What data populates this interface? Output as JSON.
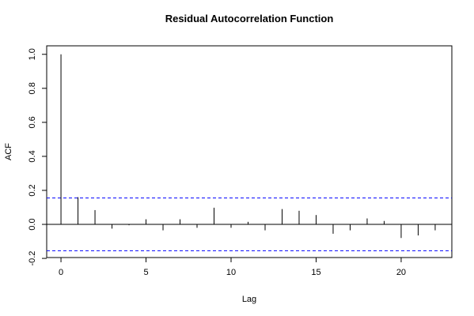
{
  "chart_data": {
    "type": "acf",
    "title": "Residual Autocorrelation Function",
    "x_label": "Lag",
    "y_label": "ACF",
    "x": [
      0,
      1,
      2,
      3,
      4,
      5,
      6,
      7,
      8,
      9,
      10,
      11,
      12,
      13,
      14,
      15,
      16,
      17,
      18,
      19,
      20,
      21,
      22
    ],
    "values": [
      1.0,
      0.16,
      0.084,
      -0.025,
      -0.005,
      0.03,
      -0.035,
      0.03,
      -0.02,
      0.098,
      -0.02,
      0.015,
      -0.035,
      0.09,
      0.08,
      0.055,
      -0.055,
      -0.035,
      0.035,
      0.02,
      -0.08,
      -0.065,
      -0.035
    ],
    "color": "#000000",
    "conf_limits": [
      0.155,
      -0.155
    ],
    "conf_color": "#0000ff",
    "xlim": [
      -0.84,
      22.98
    ],
    "ylim": [
      -0.195,
      1.05
    ],
    "xticks": [
      0,
      5,
      10,
      15,
      20
    ],
    "yticks": [
      {
        "value": -0.2,
        "label": "-0.2"
      },
      {
        "value": 0,
        "label": "0.0"
      },
      0.2,
      0.4,
      0.6,
      0.8,
      {
        "value": 1,
        "label": "1.0"
      }
    ]
  }
}
